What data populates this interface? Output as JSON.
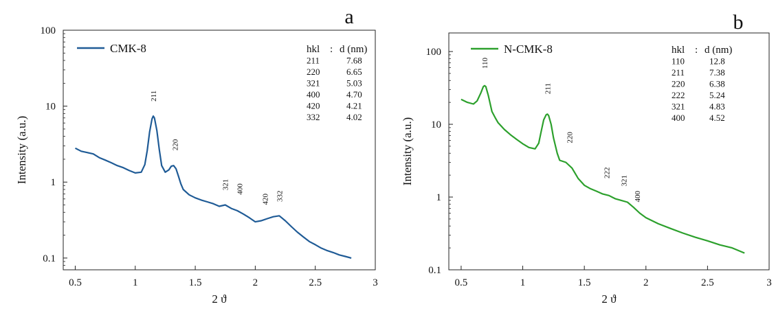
{
  "chart_data": [
    {
      "panel_letter": "a",
      "type": "line",
      "xlabel": "2 ϑ",
      "ylabel": "Intensity (a.u.)",
      "xlim": [
        0.4,
        3.0
      ],
      "ylim": [
        0.07,
        100
      ],
      "y_scale": "log",
      "x_ticks": [
        0.5,
        1,
        1.5,
        2,
        2.5,
        3
      ],
      "x_tick_labels": [
        "0.5",
        "1",
        "1.5",
        "2",
        "2.5",
        "3"
      ],
      "y_ticks": [
        0.1,
        1,
        10,
        100
      ],
      "y_tick_labels": [
        "0.1",
        "1",
        "10",
        "100"
      ],
      "legend_position": "top-left",
      "series": [
        {
          "name": "CMK-8",
          "color": "#1f5b96",
          "x": [
            0.5,
            0.55,
            0.6,
            0.65,
            0.7,
            0.75,
            0.8,
            0.85,
            0.9,
            0.95,
            1.0,
            1.05,
            1.08,
            1.1,
            1.12,
            1.14,
            1.15,
            1.16,
            1.18,
            1.2,
            1.22,
            1.25,
            1.28,
            1.3,
            1.32,
            1.34,
            1.36,
            1.38,
            1.4,
            1.45,
            1.5,
            1.55,
            1.6,
            1.65,
            1.7,
            1.75,
            1.8,
            1.85,
            1.9,
            1.95,
            2.0,
            2.05,
            2.1,
            2.15,
            2.2,
            2.25,
            2.3,
            2.35,
            2.4,
            2.45,
            2.5,
            2.55,
            2.6,
            2.65,
            2.7,
            2.75,
            2.8
          ],
          "y": [
            2.8,
            2.55,
            2.45,
            2.35,
            2.1,
            1.95,
            1.8,
            1.65,
            1.55,
            1.42,
            1.32,
            1.35,
            1.7,
            2.6,
            4.6,
            6.8,
            7.4,
            7.0,
            4.8,
            2.7,
            1.65,
            1.35,
            1.45,
            1.62,
            1.65,
            1.5,
            1.2,
            0.95,
            0.8,
            0.68,
            0.62,
            0.58,
            0.55,
            0.52,
            0.48,
            0.5,
            0.45,
            0.42,
            0.38,
            0.34,
            0.3,
            0.31,
            0.33,
            0.35,
            0.36,
            0.31,
            0.26,
            0.22,
            0.19,
            0.165,
            0.15,
            0.135,
            0.125,
            0.118,
            0.11,
            0.105,
            0.1
          ]
        }
      ],
      "peak_labels": [
        {
          "label": "211",
          "x": 1.15,
          "y": 11.5
        },
        {
          "label": "220",
          "x": 1.33,
          "y": 2.6
        },
        {
          "label": "321",
          "x": 1.75,
          "y": 0.78
        },
        {
          "label": "400",
          "x": 1.87,
          "y": 0.68
        },
        {
          "label": "420",
          "x": 2.08,
          "y": 0.5
        },
        {
          "label": "332",
          "x": 2.2,
          "y": 0.55
        }
      ],
      "table": {
        "header": [
          "hkl",
          ":",
          "d (nm)"
        ],
        "rows": [
          [
            "211",
            "7.68"
          ],
          [
            "220",
            "6.65"
          ],
          [
            "321",
            "5.03"
          ],
          [
            "400",
            "4.70"
          ],
          [
            "420",
            "4.21"
          ],
          [
            "332",
            "4.02"
          ]
        ]
      }
    },
    {
      "panel_letter": "b",
      "type": "line",
      "xlabel": "2 ϑ",
      "ylabel": "Intensity (a.u.)",
      "xlim": [
        0.4,
        3.0
      ],
      "ylim": [
        0.1,
        180
      ],
      "y_scale": "log",
      "x_ticks": [
        0.5,
        1,
        1.5,
        2,
        2.5,
        3
      ],
      "x_tick_labels": [
        "0.5",
        "1",
        "1.5",
        "2",
        "2.5",
        "3"
      ],
      "y_ticks": [
        0.1,
        1,
        10,
        100
      ],
      "y_tick_labels": [
        "0.1",
        "1",
        "10",
        "100"
      ],
      "legend_position": "top-left",
      "series": [
        {
          "name": "N-CMK-8",
          "color": "#2ca02c",
          "x": [
            0.5,
            0.55,
            0.6,
            0.63,
            0.66,
            0.68,
            0.69,
            0.7,
            0.72,
            0.75,
            0.78,
            0.8,
            0.85,
            0.9,
            0.95,
            1.0,
            1.05,
            1.1,
            1.13,
            1.15,
            1.17,
            1.19,
            1.2,
            1.21,
            1.23,
            1.25,
            1.28,
            1.3,
            1.35,
            1.4,
            1.45,
            1.5,
            1.55,
            1.6,
            1.65,
            1.7,
            1.75,
            1.8,
            1.85,
            1.9,
            1.95,
            2.0,
            2.1,
            2.2,
            2.3,
            2.4,
            2.5,
            2.6,
            2.7,
            2.8
          ],
          "y": [
            22,
            20,
            19,
            21,
            27,
            33,
            34,
            33,
            25,
            15,
            12,
            10.5,
            8.5,
            7.2,
            6.2,
            5.4,
            4.8,
            4.6,
            5.5,
            8.0,
            11.5,
            13.5,
            13.8,
            13.2,
            10.0,
            6.5,
            4.0,
            3.2,
            3.0,
            2.5,
            1.8,
            1.45,
            1.3,
            1.2,
            1.1,
            1.05,
            0.95,
            0.9,
            0.85,
            0.72,
            0.6,
            0.52,
            0.43,
            0.37,
            0.32,
            0.28,
            0.25,
            0.22,
            0.2,
            0.17
          ]
        }
      ],
      "peak_labels": [
        {
          "label": "110",
          "x": 0.69,
          "y": 58
        },
        {
          "label": "211",
          "x": 1.2,
          "y": 26
        },
        {
          "label": "220",
          "x": 1.38,
          "y": 5.5
        },
        {
          "label": "222",
          "x": 1.68,
          "y": 1.8
        },
        {
          "label": "321",
          "x": 1.82,
          "y": 1.4
        },
        {
          "label": "400",
          "x": 1.93,
          "y": 0.85
        }
      ],
      "table": {
        "header": [
          "hkl",
          ":",
          "d (nm)"
        ],
        "rows": [
          [
            "110",
            "12.8"
          ],
          [
            "211",
            "7.38"
          ],
          [
            "220",
            "6.38"
          ],
          [
            "222",
            "5.24"
          ],
          [
            "321",
            "4.83"
          ],
          [
            "400",
            "4.52"
          ]
        ]
      }
    }
  ]
}
